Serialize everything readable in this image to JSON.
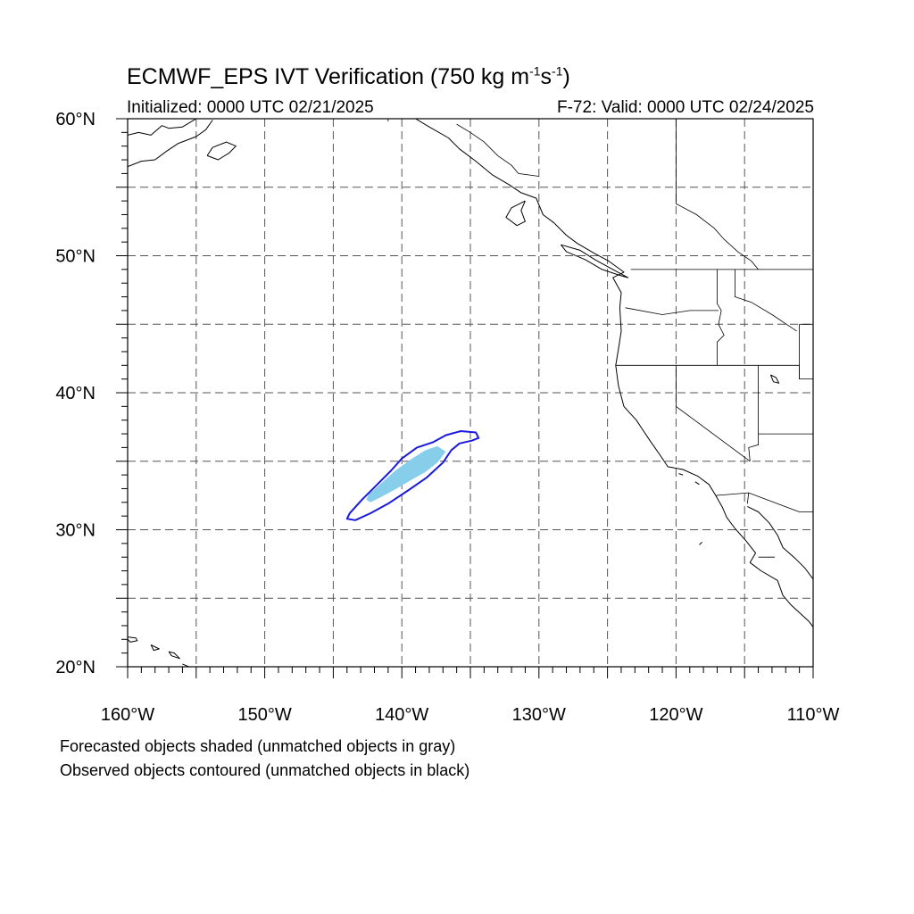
{
  "title": {
    "prefix": "ECMWF_EPS IVT Verification (750 kg m",
    "exp1": "-1",
    "mid": "s",
    "exp2": "-1",
    "suffix": ")"
  },
  "initialized": "Initialized: 0000 UTC 02/21/2025",
  "valid": "F-72: Valid: 0000 UTC 02/24/2025",
  "notes": {
    "forecast": "Forecasted objects shaded (unmatched objects in gray)",
    "observed": "Observed objects contoured (unmatched objects in black)"
  },
  "map": {
    "lon_range": [
      -160,
      -110
    ],
    "lat_range": [
      20,
      60
    ],
    "grid_lon_step": 5,
    "grid_lat_step": 5,
    "lon_ticks": [
      {
        "value": -160,
        "label": "160°W"
      },
      {
        "value": -150,
        "label": "150°W"
      },
      {
        "value": -140,
        "label": "140°W"
      },
      {
        "value": -130,
        "label": "130°W"
      },
      {
        "value": -120,
        "label": "120°W"
      },
      {
        "value": -110,
        "label": "110°W"
      }
    ],
    "lat_ticks": [
      {
        "value": 20,
        "label": "20°N"
      },
      {
        "value": 30,
        "label": "30°N"
      },
      {
        "value": 40,
        "label": "40°N"
      },
      {
        "value": 50,
        "label": "50°N"
      },
      {
        "value": 60,
        "label": "60°N"
      }
    ],
    "colors": {
      "forecast_fill": "#87ceeb",
      "observed_contour": "#1a1adc",
      "coast": "#000000",
      "grid": "#555555"
    },
    "forecast_object": [
      [
        -142.3,
        32.0
      ],
      [
        -141.5,
        32.4
      ],
      [
        -140.4,
        33.0
      ],
      [
        -139.2,
        33.7
      ],
      [
        -138.3,
        34.2
      ],
      [
        -137.4,
        34.9
      ],
      [
        -136.8,
        35.7
      ],
      [
        -137.4,
        36.1
      ],
      [
        -138.3,
        35.8
      ],
      [
        -139.4,
        35.1
      ],
      [
        -140.5,
        34.3
      ],
      [
        -141.5,
        33.4
      ],
      [
        -142.4,
        32.6
      ],
      [
        -142.6,
        32.2
      ]
    ],
    "observed_object": [
      [
        -144.0,
        30.8
      ],
      [
        -143.4,
        30.7
      ],
      [
        -142.3,
        31.2
      ],
      [
        -141.0,
        31.9
      ],
      [
        -139.5,
        32.9
      ],
      [
        -138.2,
        33.8
      ],
      [
        -137.0,
        34.9
      ],
      [
        -136.4,
        35.8
      ],
      [
        -135.8,
        36.3
      ],
      [
        -134.9,
        36.5
      ],
      [
        -134.4,
        36.7
      ],
      [
        -134.6,
        37.1
      ],
      [
        -135.7,
        37.2
      ],
      [
        -136.8,
        36.9
      ],
      [
        -137.7,
        36.4
      ],
      [
        -138.9,
        36.0
      ],
      [
        -140.0,
        35.2
      ],
      [
        -140.8,
        34.3
      ],
      [
        -141.8,
        33.3
      ],
      [
        -142.9,
        32.2
      ],
      [
        -143.8,
        31.2
      ]
    ],
    "coastlines": [
      [
        [
          -160,
          58.8
        ],
        [
          -159.2,
          59.0
        ],
        [
          -158.3,
          58.8
        ],
        [
          -157.5,
          59.5
        ],
        [
          -157.0,
          59.3
        ],
        [
          -156.0,
          59.4
        ],
        [
          -155.0,
          60
        ]
      ],
      [
        [
          -160,
          56.5
        ],
        [
          -159.0,
          56.9
        ],
        [
          -158.0,
          57.0
        ],
        [
          -157.2,
          57.6
        ],
        [
          -156.3,
          58.2
        ],
        [
          -155.0,
          58.7
        ],
        [
          -154.3,
          59.2
        ],
        [
          -153.8,
          59.9
        ]
      ],
      [
        [
          -154.2,
          57.3
        ],
        [
          -153.4,
          57.0
        ],
        [
          -152.6,
          57.5
        ],
        [
          -152.1,
          58.0
        ],
        [
          -152.8,
          58.3
        ],
        [
          -153.8,
          57.9
        ],
        [
          -154.2,
          57.3
        ]
      ],
      [
        [
          -148.0,
          60
        ],
        [
          -147.3,
          60.3
        ]
      ],
      [
        [
          -139.0,
          60
        ],
        [
          -138.0,
          59.4
        ],
        [
          -136.6,
          58.6
        ],
        [
          -135.8,
          57.8
        ],
        [
          -134.6,
          56.9
        ],
        [
          -133.4,
          55.9
        ],
        [
          -132.2,
          55.2
        ],
        [
          -131.3,
          54.6
        ],
        [
          -130.2,
          54.2
        ],
        [
          -129.7,
          53.0
        ],
        [
          -128.9,
          52.4
        ],
        [
          -128.0,
          51.5
        ],
        [
          -127.2,
          50.9
        ],
        [
          -126.0,
          50.2
        ],
        [
          -124.9,
          49.6
        ],
        [
          -123.8,
          48.8
        ],
        [
          -124.6,
          48.4
        ],
        [
          -124.0,
          47.3
        ],
        [
          -124.1,
          46.2
        ],
        [
          -124.0,
          44.5
        ],
        [
          -124.2,
          43.2
        ],
        [
          -124.4,
          42.0
        ],
        [
          -124.2,
          40.5
        ],
        [
          -123.8,
          39.0
        ],
        [
          -122.9,
          38.0
        ],
        [
          -122.5,
          37.4
        ],
        [
          -121.9,
          36.5
        ],
        [
          -121.2,
          35.5
        ],
        [
          -120.6,
          34.6
        ],
        [
          -119.5,
          34.4
        ],
        [
          -118.4,
          33.9
        ],
        [
          -117.6,
          33.3
        ],
        [
          -117.1,
          32.5
        ],
        [
          -116.6,
          31.6
        ],
        [
          -116.3,
          30.9
        ],
        [
          -115.7,
          30.1
        ],
        [
          -114.9,
          29.2
        ],
        [
          -114.2,
          28.3
        ],
        [
          -114.6,
          27.6
        ],
        [
          -113.8,
          27.0
        ],
        [
          -112.6,
          26.3
        ],
        [
          -112.2,
          25.2
        ],
        [
          -111.6,
          24.5
        ],
        [
          -110.3,
          23.3
        ],
        [
          -110,
          22.9
        ]
      ],
      [
        [
          -114.8,
          31.7
        ],
        [
          -114.0,
          31.3
        ],
        [
          -113.2,
          30.5
        ],
        [
          -112.6,
          29.6
        ],
        [
          -112.2,
          28.7
        ],
        [
          -111.3,
          27.9
        ],
        [
          -110.6,
          27.2
        ],
        [
          -110,
          26.4
        ]
      ],
      [
        [
          -131.0,
          54.0
        ],
        [
          -132.0,
          53.5
        ],
        [
          -132.4,
          52.8
        ],
        [
          -131.6,
          52.2
        ],
        [
          -131.0,
          52.5
        ],
        [
          -131.3,
          53.3
        ],
        [
          -131.0,
          54.0
        ]
      ],
      [
        [
          -128.4,
          50.8
        ],
        [
          -127.0,
          50.4
        ],
        [
          -125.9,
          49.7
        ],
        [
          -124.8,
          49.1
        ],
        [
          -123.5,
          48.4
        ],
        [
          -124.2,
          48.6
        ],
        [
          -125.4,
          49.0
        ],
        [
          -126.6,
          49.7
        ],
        [
          -128.0,
          50.3
        ],
        [
          -128.4,
          50.8
        ]
      ],
      [
        [
          -113.1,
          41.3
        ],
        [
          -112.7,
          41.1
        ],
        [
          -112.5,
          40.7
        ],
        [
          -112.9,
          40.8
        ],
        [
          -113.1,
          41.3
        ]
      ],
      [
        [
          -160.2,
          22.2
        ],
        [
          -159.4,
          22.1
        ],
        [
          -159.3,
          21.9
        ],
        [
          -159.8,
          21.8
        ],
        [
          -160.2,
          22.2
        ]
      ],
      [
        [
          -158.3,
          21.6
        ],
        [
          -157.7,
          21.3
        ],
        [
          -158.1,
          21.2
        ],
        [
          -158.3,
          21.6
        ]
      ],
      [
        [
          -157.0,
          21.1
        ],
        [
          -156.8,
          20.8
        ],
        [
          -156.2,
          20.6
        ],
        [
          -156.6,
          21.0
        ],
        [
          -157.0,
          21.1
        ]
      ],
      [
        [
          -156.0,
          20.2
        ],
        [
          -155.3,
          19.9
        ],
        [
          -155.0,
          20.0
        ]
      ],
      [
        [
          -118.6,
          33.5
        ],
        [
          -118.3,
          33.3
        ]
      ],
      [
        [
          -119.8,
          34.1
        ],
        [
          -119.5,
          34.0
        ]
      ],
      [
        [
          -118.1,
          29.1
        ],
        [
          -118.3,
          28.9
        ]
      ]
    ],
    "borders": [
      [
        [
          -123.3,
          49
        ],
        [
          -110,
          49
        ]
      ],
      [
        [
          -117.0,
          49
        ],
        [
          -117.0,
          46.5
        ],
        [
          -116.7,
          46.0
        ],
        [
          -116.9,
          45.0
        ],
        [
          -116.5,
          44.2
        ],
        [
          -117.0,
          43.7
        ],
        [
          -117.0,
          42
        ]
      ],
      [
        [
          -124.4,
          42
        ],
        [
          -111.0,
          42
        ]
      ],
      [
        [
          -123.7,
          46.2
        ],
        [
          -121.0,
          45.7
        ],
        [
          -119.0,
          46.0
        ],
        [
          -116.9,
          46.0
        ]
      ],
      [
        [
          -120,
          42
        ],
        [
          -120,
          39
        ],
        [
          -114.6,
          35.0
        ]
      ],
      [
        [
          -114.0,
          42
        ],
        [
          -114.0,
          36.2
        ],
        [
          -114.7,
          36.0
        ],
        [
          -114.6,
          35.0
        ]
      ],
      [
        [
          -114.0,
          37.0
        ],
        [
          -110,
          37.0
        ]
      ],
      [
        [
          -111.0,
          42
        ],
        [
          -111.0,
          41.0
        ],
        [
          -110,
          41.0
        ]
      ],
      [
        [
          -111.0,
          45
        ],
        [
          -110,
          45
        ]
      ],
      [
        [
          -111.0,
          45
        ],
        [
          -111.0,
          41.0
        ]
      ],
      [
        [
          -115.7,
          49
        ],
        [
          -115.7,
          47.0
        ],
        [
          -114.5,
          46.6
        ],
        [
          -113.0,
          45.7
        ],
        [
          -111.2,
          44.5
        ]
      ],
      [
        [
          -120,
          60
        ],
        [
          -120,
          53.8
        ],
        [
          -118.5,
          53.0
        ],
        [
          -117.2,
          52.0
        ],
        [
          -116.5,
          51.2
        ],
        [
          -115.5,
          50.3
        ],
        [
          -114.5,
          49.6
        ],
        [
          -114.0,
          49.0
        ]
      ],
      [
        [
          -141,
          60
        ],
        [
          -141,
          59.8
        ]
      ],
      [
        [
          -136.0,
          59.6
        ],
        [
          -135.0,
          59.0
        ],
        [
          -134.0,
          58.3
        ],
        [
          -133.0,
          57.3
        ],
        [
          -132.0,
          56.6
        ],
        [
          -131.5,
          56.0
        ],
        [
          -130.0,
          55.8
        ]
      ],
      [
        [
          -117.1,
          32.5
        ],
        [
          -114.7,
          32.7
        ],
        [
          -111.0,
          31.3
        ],
        [
          -110,
          31.3
        ]
      ],
      [
        [
          -114.7,
          32.7
        ],
        [
          -114.8,
          31.9
        ]
      ],
      [
        [
          -114.0,
          28.0
        ],
        [
          -112.8,
          28.0
        ]
      ]
    ]
  }
}
